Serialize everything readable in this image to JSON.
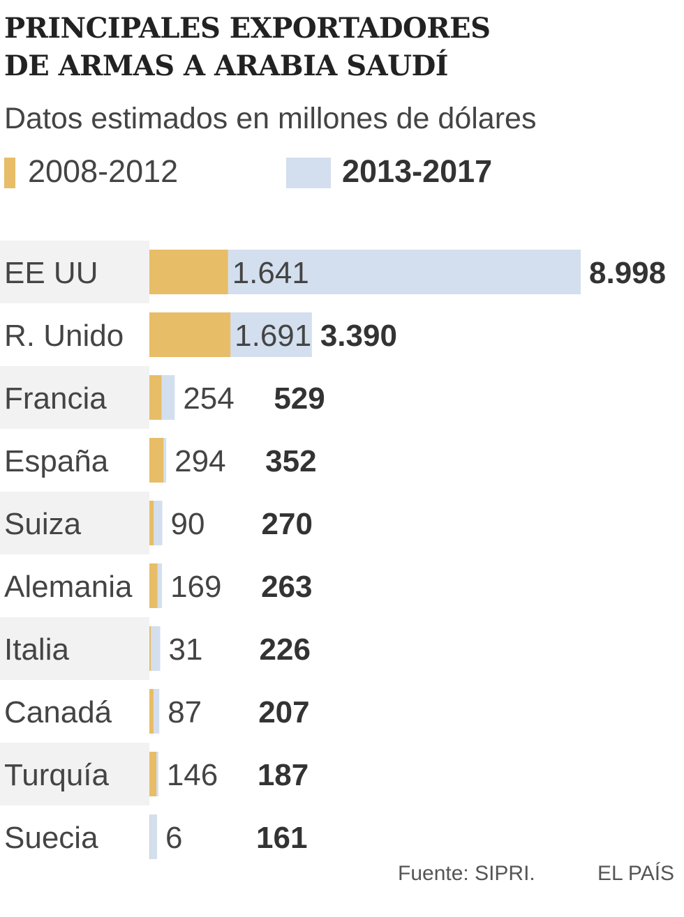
{
  "header": {
    "title_line1": "PRINCIPALES EXPORTADORES",
    "title_line2": "DE ARMAS A ARABIA SAUDÍ",
    "subtitle": "Datos estimados en millones de dólares"
  },
  "legend": [
    {
      "label": "2008-2012",
      "color": "#e8bd67"
    },
    {
      "label": "2013-2017",
      "color": "#d3dfee"
    }
  ],
  "footer": {
    "source": "Fuente: SIPRI.",
    "brand": "EL PAÍS"
  },
  "chart_data": {
    "type": "bar",
    "orientation": "horizontal",
    "categories": [
      "EE UU",
      "R. Unido",
      "Francia",
      "España",
      "Suiza",
      "Alemania",
      "Italia",
      "Canadá",
      "Turquía",
      "Suecia"
    ],
    "series": [
      {
        "name": "2008-2012",
        "values": [
          1641,
          1691,
          254,
          294,
          90,
          169,
          31,
          87,
          146,
          6
        ],
        "labels": [
          "1.641",
          "1.691",
          "254",
          "294",
          "90",
          "169",
          "31",
          "87",
          "146",
          "6"
        ],
        "color": "#e8bd67"
      },
      {
        "name": "2013-2017",
        "values": [
          8998,
          3390,
          529,
          352,
          270,
          263,
          226,
          207,
          187,
          161
        ],
        "labels": [
          "8.998",
          "3.390",
          "529",
          "352",
          "270",
          "263",
          "226",
          "207",
          "187",
          "161"
        ],
        "color": "#d3dfee"
      }
    ],
    "xlim": [
      0,
      8998
    ],
    "grid": false,
    "legend_position": "top"
  }
}
